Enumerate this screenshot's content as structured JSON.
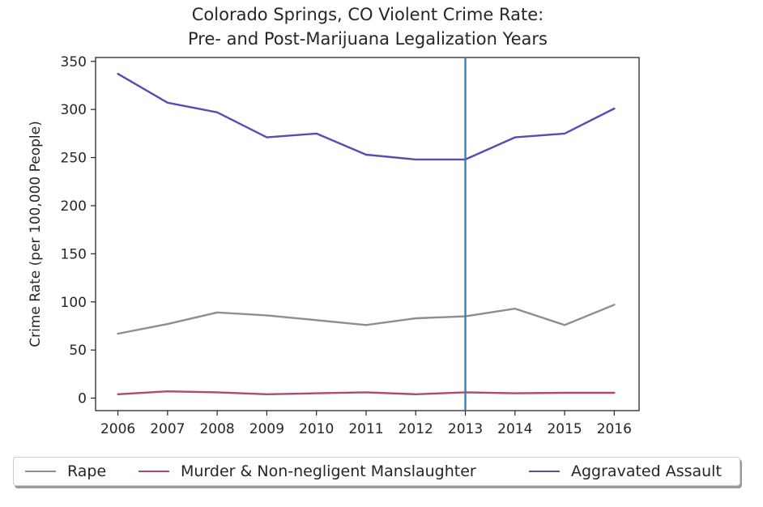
{
  "chart_data": {
    "type": "line",
    "title": "Colorado Springs, CO Violent Crime Rate:",
    "subtitle": "Pre- and Post-Marijuana Legalization Years",
    "xlabel": "",
    "ylabel": "Crime Rate (per 100,000 People)",
    "x": [
      2006,
      2007,
      2008,
      2009,
      2010,
      2011,
      2012,
      2013,
      2014,
      2015,
      2016
    ],
    "xticks": [
      "2006",
      "2007",
      "2008",
      "2009",
      "2010",
      "2011",
      "2012",
      "2013",
      "2014",
      "2015",
      "2016"
    ],
    "yticks": [
      "0",
      "50",
      "100",
      "150",
      "200",
      "250",
      "300",
      "350"
    ],
    "xlim": [
      2005.55,
      2016.5
    ],
    "ylim": [
      -13,
      354
    ],
    "grid": false,
    "legend_placement": "bottom-center",
    "vline": {
      "x": 2013,
      "color": "#3a7fb8"
    },
    "series": [
      {
        "name": "Rape",
        "color": "#8e8e8e",
        "values": [
          67,
          77,
          89,
          86,
          81,
          76,
          83,
          85,
          93,
          76,
          97
        ]
      },
      {
        "name": "Murder & Non-negligent Manslaughter",
        "color": "#b5476f",
        "values": [
          4,
          7,
          6,
          4,
          5,
          6,
          4,
          6,
          5,
          5.5,
          5.5
        ]
      },
      {
        "name": "Aggravated Assault",
        "color": "#5c4bb0",
        "values": [
          337,
          307,
          297,
          271,
          275,
          253,
          248,
          248,
          271,
          275,
          301
        ]
      }
    ]
  }
}
